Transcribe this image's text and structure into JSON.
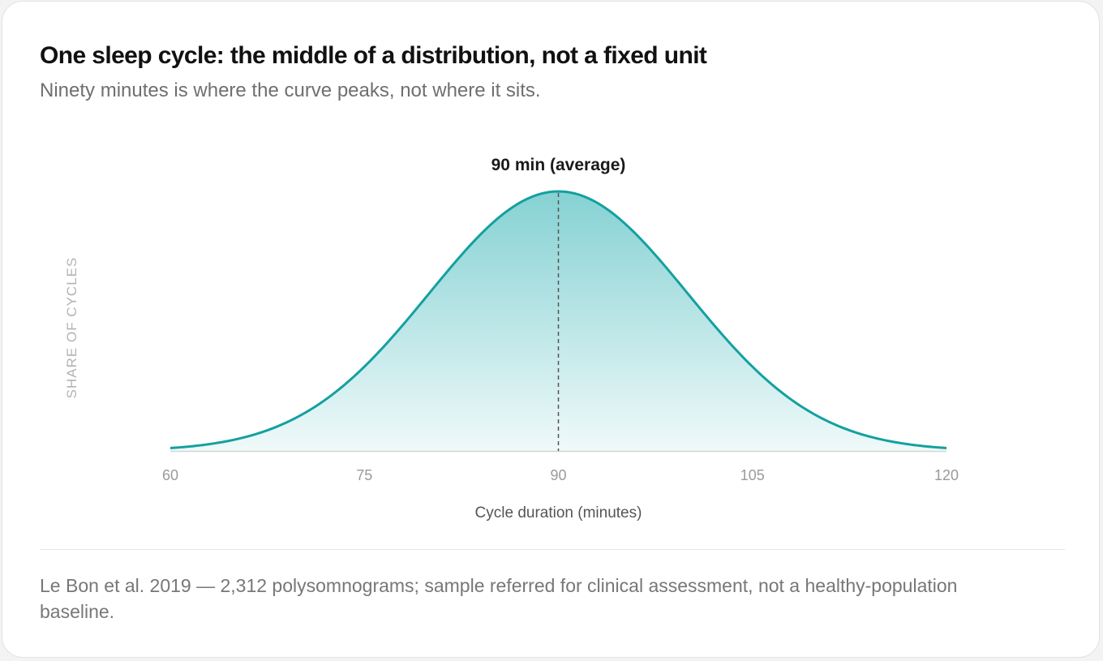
{
  "header": {
    "title": "One sleep cycle: the middle of a distribution, not a fixed unit",
    "subtitle": "Ninety minutes is where the curve peaks, not where it sits."
  },
  "footer": {
    "source": "Le Bon et al. 2019 — 2,312 polysomnograms; sample referred for clinical assessment, not a healthy-population baseline."
  },
  "chart_data": {
    "type": "area",
    "xlabel": "Cycle duration (minutes)",
    "ylabel": "SHARE OF CYCLES",
    "xlim": [
      60,
      120
    ],
    "x_ticks": [
      60,
      75,
      90,
      105,
      120
    ],
    "y_ticks_shown": false,
    "grid": false,
    "legend": "none",
    "distribution": {
      "shape": "normal",
      "mean": 90,
      "sd": 10
    },
    "annotations": [
      {
        "x": 90,
        "label": "90 min (average)",
        "style": "dashed vertical line"
      }
    ],
    "colors": {
      "line": "#14a0a0",
      "fill": "#7fcfd1",
      "baseline": "#d5d5d5",
      "marker": "#555555"
    }
  }
}
